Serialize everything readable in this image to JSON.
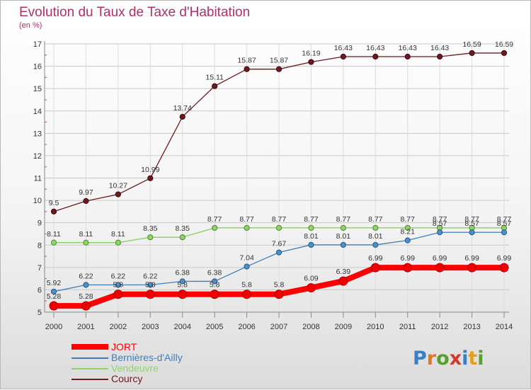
{
  "title": "Evolution du Taux de Taxe d'Habitation",
  "subtitle": "(en %)",
  "logo": {
    "letters": [
      "P",
      "r",
      "o",
      "x",
      "i",
      "t",
      "i"
    ],
    "colors": [
      "#3a7fc4",
      "#e07a20",
      "#5a9e2f",
      "#d23a2a",
      "#3a7fc4",
      "#e0a020",
      "#5a9e2f"
    ]
  },
  "chart_data": {
    "type": "line",
    "x": [
      2000,
      2001,
      2002,
      2003,
      2004,
      2005,
      2006,
      2007,
      2008,
      2009,
      2010,
      2011,
      2012,
      2013,
      2014
    ],
    "ylim": [
      5,
      17
    ],
    "yticks": [
      5,
      6,
      7,
      8,
      9,
      10,
      11,
      12,
      13,
      14,
      15,
      16,
      17
    ],
    "grid": true,
    "legend_position": "bottom-left",
    "series": [
      {
        "name": "Courcy",
        "color": "#6b1a1f",
        "values": [
          9.5,
          9.97,
          10.27,
          10.99,
          13.74,
          15.11,
          15.87,
          15.87,
          16.19,
          16.43,
          16.43,
          16.43,
          16.43,
          16.59,
          16.59
        ],
        "labels": [
          "9.5",
          "9.97",
          "10.27",
          "10.99",
          "13.74",
          "15.11",
          "15.87",
          "15.87",
          "16.19",
          "16.43",
          "16.43",
          "16.43",
          "16.43",
          "16.59",
          "16.59"
        ]
      },
      {
        "name": "Vendeuvre",
        "color": "#8fd46a",
        "values": [
          8.11,
          8.11,
          8.11,
          8.35,
          8.35,
          8.77,
          8.77,
          8.77,
          8.77,
          8.77,
          8.77,
          8.77,
          8.77,
          8.77,
          8.77
        ],
        "labels": [
          "8.11",
          "8.11",
          "8.11",
          "8.35",
          "8.35",
          "8.77",
          "8.77",
          "8.77",
          "8.77",
          "8.77",
          "8.77",
          "8.77",
          "8.77",
          "8.77",
          "8.77"
        ]
      },
      {
        "name": "Bernières-d'Ailly",
        "color": "#3f7fb8",
        "values": [
          5.92,
          6.22,
          6.22,
          6.22,
          6.38,
          6.38,
          7.04,
          7.67,
          8.01,
          8.01,
          8.01,
          8.21,
          8.57,
          8.57,
          8.57
        ],
        "labels": [
          "5.92",
          "6.22",
          "6.22",
          "6.22",
          "6.38",
          "6.38",
          "7.04",
          "7.67",
          "8.01",
          "8.01",
          "8.01",
          "8.21",
          "8.57",
          "8.57",
          "8.57"
        ]
      },
      {
        "name": "JORT",
        "color": "#ff0000",
        "values": [
          5.28,
          5.28,
          5.8,
          5.8,
          5.8,
          5.8,
          5.8,
          5.8,
          6.09,
          6.39,
          6.99,
          6.99,
          6.99,
          6.99,
          6.99
        ],
        "labels": [
          "5.28",
          "5.28",
          "5.8",
          "5.8",
          "5.8",
          "5.8",
          "5.8",
          "5.8",
          "6.09",
          "6.39",
          "6.99",
          "6.99",
          "6.99",
          "6.99",
          "6.99"
        ]
      }
    ],
    "legend_order": [
      "JORT",
      "Bernières-d'Ailly",
      "Vendeuvre",
      "Courcy"
    ]
  }
}
